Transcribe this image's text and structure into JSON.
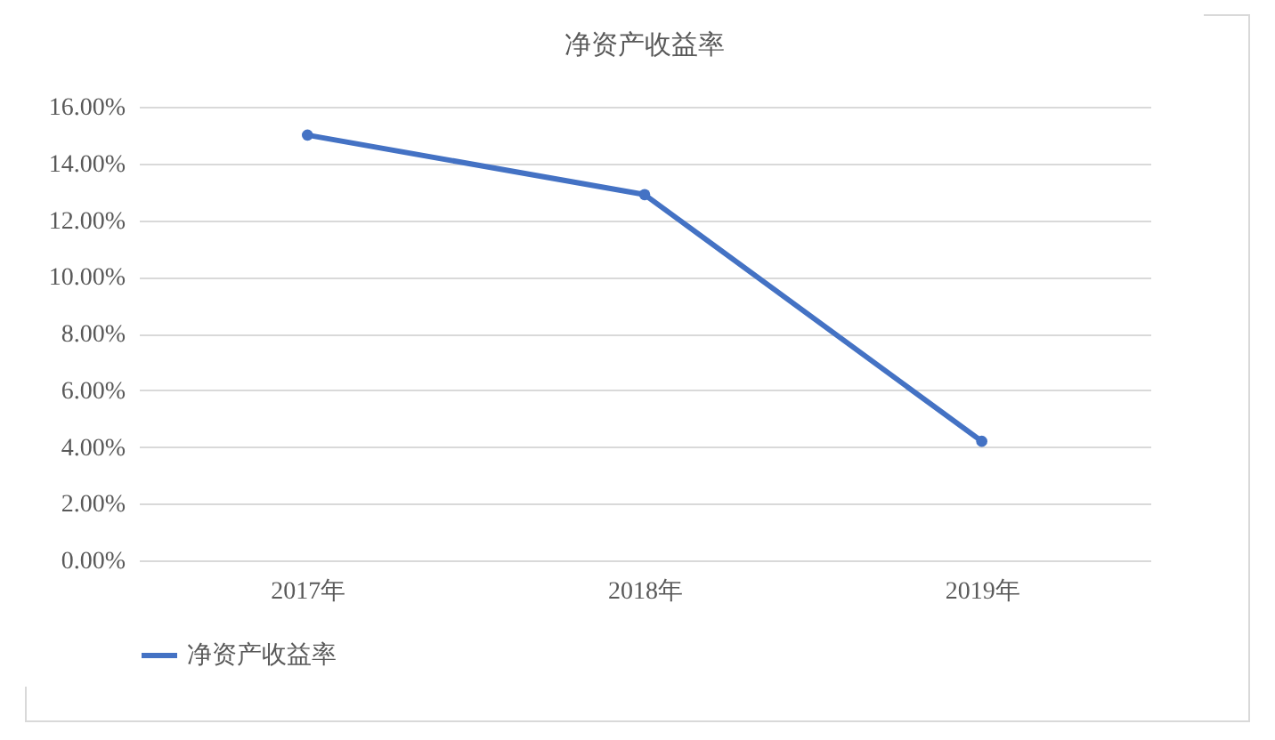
{
  "chart_data": {
    "type": "line",
    "title": "净资产收益率",
    "categories": [
      "2017年",
      "2018年",
      "2019年"
    ],
    "series": [
      {
        "name": "净资产收益率",
        "color": "#4472c4",
        "values": [
          15.0,
          12.9,
          4.2
        ]
      }
    ],
    "ylim": [
      0,
      16
    ],
    "yticks": [
      {
        "value": 0,
        "label": "0.00%"
      },
      {
        "value": 2,
        "label": "2.00%"
      },
      {
        "value": 4,
        "label": "4.00%"
      },
      {
        "value": 6,
        "label": "6.00%"
      },
      {
        "value": 8,
        "label": "8.00%"
      },
      {
        "value": 10,
        "label": "10.00%"
      },
      {
        "value": 12,
        "label": "12.00%"
      },
      {
        "value": 14,
        "label": "14.00%"
      },
      {
        "value": 16,
        "label": "16.00%"
      }
    ],
    "grid": "y",
    "legend": "bottom",
    "marker": "circle",
    "line_style": "solid"
  }
}
